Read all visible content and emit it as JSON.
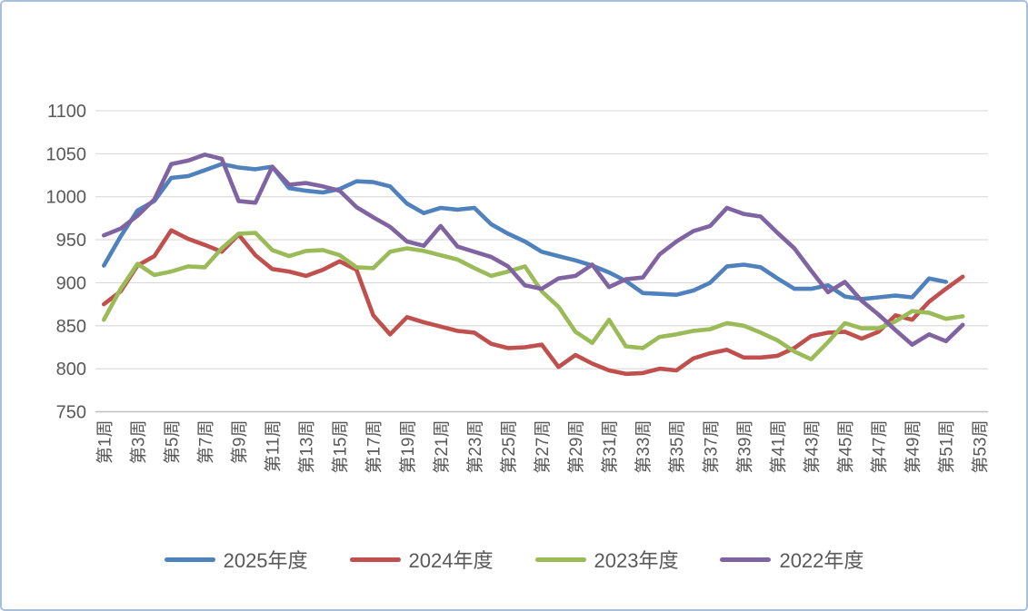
{
  "frame": {
    "border_color": "#a7bedd",
    "background": "#ffffff"
  },
  "chart_data": {
    "type": "line",
    "title": "",
    "grid": true,
    "legend_position": "bottom",
    "weeks": 53,
    "x_axis": {
      "label_prefix": "第",
      "label_suffix": "周",
      "tick_labels": [
        "第1周",
        "第3周",
        "第5周",
        "第7周",
        "第9周",
        "第11周",
        "第13周",
        "第15周",
        "第17周",
        "第19周",
        "第21周",
        "第23周",
        "第25周",
        "第27周",
        "第29周",
        "第31周",
        "第33周",
        "第35周",
        "第37周",
        "第39周",
        "第41周",
        "第43周",
        "第45周",
        "第47周",
        "第49周",
        "第51周",
        "第53周"
      ]
    },
    "y_axis": {
      "min": 750,
      "max": 1100,
      "step": 50,
      "tick_labels": [
        "750",
        "800",
        "850",
        "900",
        "950",
        "1000",
        "1050",
        "1100"
      ]
    },
    "colors": {
      "grid": "#d9d9d9",
      "axis": "#bfbfbf",
      "tick_text": "#595959"
    },
    "series": [
      {
        "name": "2025年度",
        "color": "#4F81BD",
        "start_week": 1,
        "values": [
          920,
          954,
          984,
          995,
          1022,
          1024,
          1031,
          1038,
          1034,
          1032,
          1035,
          1010,
          1007,
          1005,
          1009,
          1018,
          1017,
          1012,
          992,
          981,
          987,
          985,
          987,
          968,
          957,
          948,
          936,
          931,
          926,
          920,
          912,
          902,
          888,
          887,
          886,
          891,
          900,
          919,
          921,
          918,
          905,
          893,
          893,
          897,
          884,
          881,
          883,
          885,
          883,
          905,
          901
        ]
      },
      {
        "name": "2024年度",
        "color": "#C0504D",
        "start_week": 1,
        "values": [
          875,
          890,
          920,
          931,
          961,
          951,
          944,
          936,
          956,
          932,
          916,
          913,
          908,
          915,
          925,
          915,
          862,
          840,
          860,
          854,
          849,
          844,
          842,
          829,
          824,
          825,
          828,
          802,
          816,
          806,
          798,
          794,
          795,
          800,
          798,
          812,
          818,
          822,
          813,
          813,
          815,
          824,
          838,
          842,
          843,
          835,
          843,
          862,
          857,
          878,
          893,
          907
        ]
      },
      {
        "name": "2023年度",
        "color": "#9BBB59",
        "start_week": 1,
        "values": [
          857,
          893,
          922,
          909,
          913,
          919,
          918,
          940,
          957,
          958,
          938,
          931,
          937,
          938,
          932,
          918,
          917,
          936,
          940,
          937,
          932,
          927,
          917,
          908,
          913,
          919,
          890,
          872,
          843,
          830,
          857,
          826,
          824,
          837,
          840,
          844,
          846,
          853,
          850,
          842,
          833,
          820,
          811,
          831,
          853,
          847,
          847,
          855,
          867,
          865,
          858,
          861
        ]
      },
      {
        "name": "2022年度",
        "color": "#8064A2",
        "start_week": 1,
        "values": [
          955,
          963,
          978,
          997,
          1038,
          1042,
          1049,
          1044,
          995,
          993,
          1035,
          1014,
          1016,
          1012,
          1007,
          988,
          976,
          965,
          948,
          943,
          966,
          942,
          936,
          930,
          919,
          897,
          893,
          905,
          908,
          921,
          895,
          904,
          906,
          933,
          948,
          960,
          966,
          987,
          980,
          977,
          958,
          940,
          914,
          889,
          901,
          879,
          863,
          845,
          828,
          840,
          832,
          851
        ]
      }
    ]
  }
}
